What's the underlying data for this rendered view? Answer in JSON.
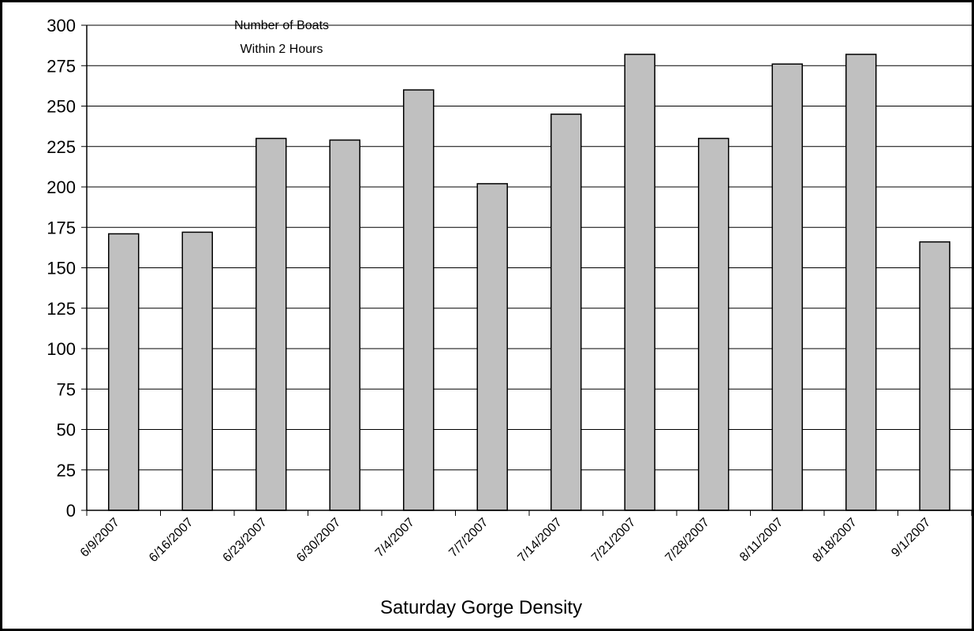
{
  "chart_data": {
    "type": "bar",
    "title_lines": [
      "Number of Boats",
      "Within 2 Hours"
    ],
    "xlabel": "Saturday Gorge Density",
    "ylabel": "",
    "ylim": [
      0,
      300
    ],
    "yticks": [
      0,
      25,
      50,
      75,
      100,
      125,
      150,
      175,
      200,
      225,
      250,
      275,
      300
    ],
    "grid": true,
    "categories": [
      "6/9/2007",
      "6/16/2007",
      "6/23/2007",
      "6/30/2007",
      "7/4/2007",
      "7/7/2007",
      "7/14/2007",
      "7/21/2007",
      "7/28/2007",
      "8/11/2007",
      "8/18/2007",
      "9/1/2007"
    ],
    "values": [
      171,
      172,
      230,
      229,
      260,
      202,
      245,
      282,
      230,
      276,
      282,
      166
    ],
    "colors": {
      "bar": "#c0c0c0",
      "bar_stroke": "#000000",
      "grid": "#000000"
    }
  }
}
